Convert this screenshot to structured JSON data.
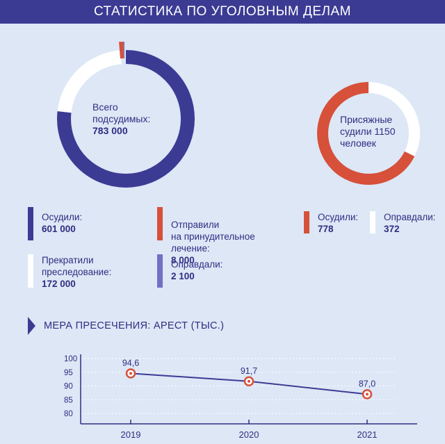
{
  "header": {
    "title": "СТАТИСТИКА ПО УГОЛОВНЫМ ДЕЛАМ"
  },
  "colors": {
    "navy": "#3b3b94",
    "white": "#ffffff",
    "red": "#d6503a",
    "violet": "#6f71c4"
  },
  "defendants": {
    "center_label": "Всего\nподсудимых:",
    "center_value": "783 000",
    "segments": [
      {
        "label": "Осудили:",
        "value_text": "601 000",
        "value": 601000,
        "color": "#3b3b94"
      },
      {
        "label": "Прекратили\nпреследование:",
        "value_text": "172 000",
        "value": 172000,
        "color": "#ffffff"
      },
      {
        "label": "Отправили\nна принудительное\nлечение:",
        "value_text": "8 000",
        "value": 8000,
        "color": "#d6503a"
      },
      {
        "label": "Оправдали:",
        "value_text": "2 100",
        "value": 2100,
        "color": "#6f71c4"
      }
    ]
  },
  "jury": {
    "center_label": "Присяжные\nсудили 1150\nчеловек",
    "segments": [
      {
        "label": "Осудили:",
        "value_text": "778",
        "value": 778,
        "color": "#d6503a"
      },
      {
        "label": "Оправдали:",
        "value_text": "372",
        "value": 372,
        "color": "#ffffff"
      }
    ]
  },
  "arrest_section": {
    "title": "МЕРА ПРЕСЕЧЕНИЯ: АРЕСТ (ТЫС.)"
  },
  "chart_data": {
    "type": "line",
    "x": [
      "2019",
      "2020",
      "2021"
    ],
    "series": [
      {
        "values": [
          94.6,
          91.7,
          87.0
        ],
        "labels": [
          "94,6",
          "91,7",
          "87,0"
        ]
      }
    ],
    "yticks": [
      "100",
      "95",
      "90",
      "85",
      "80"
    ],
    "ylim": [
      80,
      100
    ],
    "grid": true
  }
}
